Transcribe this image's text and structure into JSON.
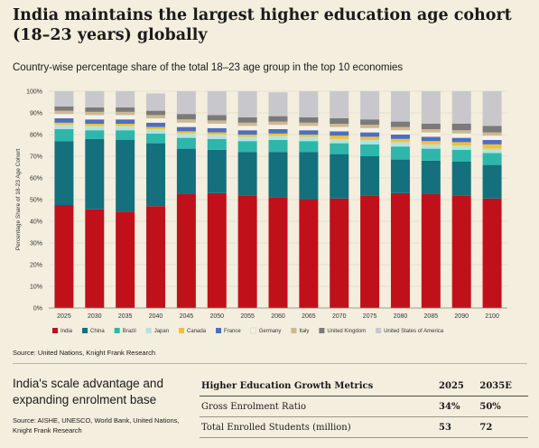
{
  "header": {
    "title": "India maintains the largest higher education age cohort (18–23 years) globally",
    "subtitle": "Country-wise percentage share of the total 18–23 age group in the top 10 economies"
  },
  "chart_data": {
    "type": "bar",
    "stacked": true,
    "categories": [
      "2025",
      "2030",
      "2035",
      "2040",
      "2045",
      "2050",
      "2055",
      "2060",
      "2065",
      "2070",
      "2075",
      "2080",
      "2085",
      "2090",
      "2100"
    ],
    "ylabel": "Percentage Share of 18-23 Age Cohort",
    "ylim": [
      0,
      100
    ],
    "yticks": [
      "0%",
      "10%",
      "20%",
      "30%",
      "40%",
      "50%",
      "60%",
      "70%",
      "80%",
      "90%",
      "100%"
    ],
    "legend_position": "bottom",
    "series": [
      {
        "name": "India",
        "color": "#c0111b",
        "values": [
          47.5,
          45.5,
          44.5,
          47,
          52.5,
          53,
          52,
          51,
          50,
          50.5,
          52,
          53,
          52.5,
          52,
          50.5
        ]
      },
      {
        "name": "China",
        "color": "#14707c",
        "values": [
          29.5,
          32.5,
          33,
          29,
          21,
          20,
          20,
          21,
          22,
          20.5,
          18,
          15.5,
          15.5,
          15.5,
          15.5
        ]
      },
      {
        "name": "Brazil",
        "color": "#2eb6ab",
        "values": [
          5.5,
          4,
          4.5,
          4.5,
          5,
          5,
          5,
          5.5,
          5,
          5,
          5.5,
          6,
          5.5,
          5.5,
          5.5
        ]
      },
      {
        "name": "Japan",
        "color": "#b3e3dd",
        "values": [
          2,
          2,
          2,
          2,
          2,
          2,
          2,
          2,
          2,
          2,
          2,
          2,
          2,
          2,
          2
        ]
      },
      {
        "name": "Canada",
        "color": "#f2c133",
        "values": [
          1,
          1,
          1,
          1,
          1,
          1,
          1,
          1,
          1,
          1.5,
          1.5,
          1.5,
          1.5,
          1.5,
          2
        ]
      },
      {
        "name": "France",
        "color": "#4e6fbf",
        "values": [
          2,
          2,
          2,
          2,
          2,
          2,
          2,
          2,
          2,
          2,
          2,
          2,
          2,
          2,
          2
        ]
      },
      {
        "name": "Germany",
        "color": "#f5f1e6",
        "values": [
          2,
          2,
          2,
          2,
          2,
          2,
          2,
          2,
          2,
          2,
          2,
          2,
          2,
          2,
          2
        ]
      },
      {
        "name": "Italy",
        "color": "#cdb991",
        "values": [
          1.5,
          1.5,
          1.5,
          1.5,
          1.5,
          1.5,
          1.5,
          1.5,
          1.5,
          1.5,
          1.5,
          1.5,
          1.5,
          1.5,
          1.5
        ]
      },
      {
        "name": "United Kingdom",
        "color": "#7a7a7a",
        "values": [
          2,
          2,
          2,
          2,
          2.5,
          2.5,
          2.5,
          2.5,
          2.5,
          2.5,
          2.5,
          2.5,
          2.5,
          3,
          3
        ]
      },
      {
        "name": "United States of America",
        "color": "#c8c8cc",
        "values": [
          7,
          7.5,
          7.5,
          8,
          10.5,
          11,
          12,
          11,
          12,
          12.5,
          13,
          14,
          15,
          15,
          16
        ]
      }
    ]
  },
  "source_chart": "Source: United Nations, Knight Frank Research",
  "side": {
    "title": "India's scale advantage and expanding enrolment base",
    "source": "Source: AISHE, UNESCO, World Bank, United Nations, Knight Frank Research"
  },
  "metrics_table": {
    "headers": [
      "Higher Education Growth Metrics",
      "2025",
      "2035E"
    ],
    "rows": [
      [
        "Gross Enrolment Ratio",
        "34%",
        "50%"
      ],
      [
        "Total Enrolled Students (million)",
        "53",
        "72"
      ]
    ]
  }
}
